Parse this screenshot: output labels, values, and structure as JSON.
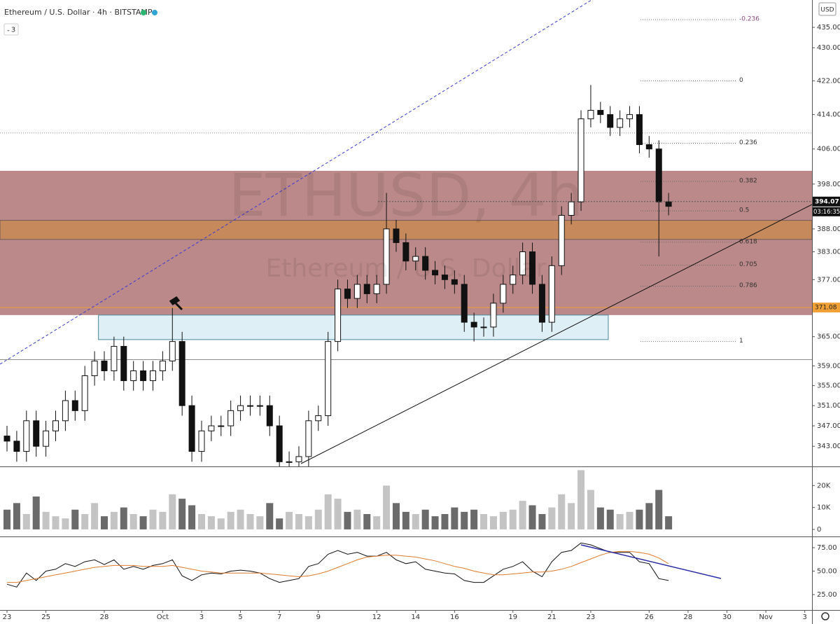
{
  "header": {
    "title": "Ethereum / U.S. Dollar · 4h · BITSTAMP",
    "indicators": 3,
    "currency": "USD",
    "watermark": "ETHUSD, 4h",
    "watermark_sub": "Ethereum / U.S. Dollar"
  },
  "chart_data": [
    {
      "type": "candlestick",
      "x": [
        0,
        0.5,
        1,
        1.5,
        2,
        2.5,
        3,
        3.5,
        4,
        4.5,
        5,
        5.5,
        6,
        6.5,
        7,
        7.5,
        8,
        8.5,
        9,
        9.5,
        10,
        10.5,
        11,
        11.5,
        12,
        12.5,
        13,
        13.5,
        14,
        14.5,
        15,
        15.5,
        16,
        16.5,
        17,
        17.5,
        18,
        18.5,
        19,
        19.5,
        20,
        20.5,
        21,
        21.5,
        22,
        22.5,
        23,
        23.5,
        24,
        24.5,
        25,
        25.5,
        26,
        26.5,
        27,
        27.5,
        28,
        28.5,
        29,
        29.5,
        30,
        30.5,
        31,
        31.5,
        32,
        32.5,
        33,
        33.5,
        34
      ],
      "open": [
        345,
        344,
        342,
        348,
        343,
        346,
        348,
        352,
        350,
        357,
        360,
        358,
        363,
        356,
        358,
        356,
        358,
        360,
        364,
        351,
        342,
        346,
        347,
        347,
        350,
        351,
        351,
        351,
        347,
        340,
        340,
        341,
        348,
        349,
        364,
        375,
        373,
        376,
        374,
        376,
        388,
        385,
        381,
        382,
        379,
        378,
        377,
        376,
        368,
        367,
        367,
        372,
        376,
        378,
        383,
        376,
        368,
        380,
        391,
        394,
        413,
        415,
        414,
        411,
        413,
        414,
        407,
        406,
        394
      ],
      "high": [
        347,
        346,
        350,
        350,
        348,
        350,
        354,
        354,
        359,
        362,
        362,
        365,
        365,
        360,
        360,
        360,
        362,
        371,
        366,
        353,
        348,
        349,
        349,
        352,
        353,
        353,
        353,
        353,
        349,
        342,
        343,
        350,
        351,
        366,
        377,
        377,
        378,
        378,
        378,
        396,
        390,
        387,
        384,
        384,
        381,
        380,
        379,
        378,
        370,
        369,
        374,
        378,
        380,
        385,
        385,
        378,
        382,
        393,
        396,
        415,
        421,
        417,
        416,
        415,
        416,
        416,
        409,
        408,
        396
      ],
      "low": [
        342,
        340,
        340,
        341,
        341,
        344,
        346,
        348,
        348,
        355,
        356,
        356,
        354,
        354,
        354,
        354,
        356,
        358,
        349,
        340,
        340,
        344,
        345,
        345,
        348,
        349,
        349,
        345,
        338,
        338,
        338,
        339,
        346,
        347,
        362,
        371,
        371,
        372,
        372,
        374,
        383,
        379,
        379,
        377,
        376,
        375,
        374,
        366,
        364,
        365,
        365,
        370,
        374,
        376,
        374,
        366,
        366,
        378,
        389,
        392,
        411,
        412,
        409,
        409,
        411,
        405,
        404,
        382,
        391
      ],
      "close": [
        344,
        342,
        348,
        343,
        346,
        348,
        352,
        350,
        357,
        360,
        358,
        363,
        356,
        358,
        356,
        358,
        360,
        364,
        351,
        342,
        346,
        347,
        347,
        350,
        351,
        351,
        351,
        347,
        340,
        340,
        341,
        348,
        349,
        364,
        375,
        373,
        376,
        374,
        376,
        388,
        385,
        381,
        382,
        379,
        378,
        377,
        376,
        368,
        367,
        367,
        372,
        376,
        378,
        383,
        376,
        368,
        380,
        391,
        394,
        413,
        415,
        414,
        411,
        413,
        414,
        407,
        406,
        394,
        393
      ],
      "xlim": [
        -0.36,
        41.37
      ],
      "ylim": [
        339.1,
        441.8
      ],
      "log_scale": true,
      "yticks": [
        {
          "value": 343,
          "label": "343.00"
        },
        {
          "value": 347,
          "label": "347.00"
        },
        {
          "value": 351,
          "label": "351.00"
        },
        {
          "value": 355,
          "label": "355.00"
        },
        {
          "value": 359,
          "label": "359.00"
        },
        {
          "value": 365,
          "label": "365.00"
        },
        {
          "value": 377,
          "label": "377.00"
        },
        {
          "value": 383,
          "label": "383.00"
        },
        {
          "value": 388,
          "label": "388.00"
        },
        {
          "value": 398,
          "label": "398.00"
        },
        {
          "value": 406,
          "label": "406.00"
        },
        {
          "value": 414,
          "label": "414.00"
        },
        {
          "value": 422,
          "label": "422.00"
        },
        {
          "value": 430,
          "label": "430.00"
        },
        {
          "value": 435,
          "label": "435.00"
        }
      ],
      "up_color": "#ffffff",
      "down_color": "#111111",
      "zones": [
        {
          "from": 369.5,
          "to": 401,
          "color": "#8e3b3b"
        },
        {
          "from": 385.7,
          "to": 389.9,
          "color": "#d08a36"
        }
      ],
      "box": {
        "x": [
          4.7,
          30.9
        ],
        "y": [
          364.4,
          369.5
        ],
        "color": "#d3e9f1"
      },
      "levels": [
        409.7,
        360.3
      ],
      "fib": {
        "levels": [
          -0.236,
          0,
          0.236,
          0.382,
          0.5,
          0.618,
          0.705,
          0.786,
          1
        ],
        "prices": [
          436.9,
          422.0,
          407.3,
          398.6,
          392.0,
          385.1,
          380.1,
          375.6,
          364.0
        ]
      },
      "last_price": 394.07,
      "countdown": "03:16:35",
      "marked_price": 371.08,
      "marked_color": "#f0a035"
    },
    {
      "type": "bar",
      "values": [
        9000,
        12000,
        7000,
        15000,
        8000,
        6000,
        5000,
        9000,
        7000,
        12000,
        6000,
        8000,
        10000,
        7000,
        6000,
        9000,
        8000,
        16000,
        14000,
        11000,
        7000,
        6000,
        5000,
        8000,
        9000,
        7000,
        6000,
        12000,
        5000,
        8000,
        7000,
        6000,
        9000,
        16000,
        14000,
        8000,
        9000,
        7000,
        6000,
        20000,
        12000,
        8000,
        7000,
        9000,
        6000,
        7000,
        10000,
        8000,
        9000,
        7000,
        6000,
        8000,
        9000,
        13000,
        11000,
        7000,
        10000,
        16000,
        12000,
        27000,
        18000,
        10000,
        9000,
        7000,
        8000,
        9000,
        12000,
        18000,
        6000
      ],
      "ylim": [
        -2900,
        28400
      ],
      "yticks": [
        0,
        {
          "value": 10000,
          "label": "10K"
        },
        {
          "value": 20000,
          "label": "20K"
        }
      ],
      "up_color": "#c4c4c4",
      "down_color": "#6b6b6b"
    },
    {
      "type": "line",
      "series": [
        {
          "color": "#111111",
          "values": [
            36,
            33,
            48,
            40,
            50,
            52,
            58,
            55,
            60,
            62,
            57,
            62,
            52,
            55,
            52,
            56,
            58,
            62,
            45,
            40,
            46,
            48,
            47,
            50,
            51,
            50,
            48,
            42,
            38,
            40,
            42,
            55,
            58,
            68,
            72,
            68,
            70,
            66,
            66,
            70,
            62,
            58,
            60,
            52,
            50,
            48,
            47,
            40,
            38,
            38,
            45,
            52,
            55,
            60,
            50,
            44,
            60,
            70,
            72,
            80,
            78,
            74,
            70,
            70,
            70,
            60,
            58,
            42,
            40
          ]
        },
        {
          "color": "#e07b2c",
          "values": [
            38,
            38,
            40,
            42,
            44,
            46,
            48,
            50,
            52,
            54,
            55,
            56,
            56,
            56,
            55,
            55,
            55,
            56,
            54,
            52,
            50,
            49,
            48,
            48,
            48,
            48,
            48,
            47,
            46,
            45,
            44,
            45,
            47,
            50,
            54,
            58,
            62,
            65,
            66,
            67,
            67,
            66,
            65,
            63,
            61,
            58,
            55,
            53,
            50,
            48,
            46,
            46,
            47,
            48,
            49,
            49,
            50,
            52,
            55,
            59,
            63,
            67,
            70,
            71,
            71,
            70,
            68,
            64,
            58
          ]
        }
      ],
      "ylim": [
        9.3,
        86.2
      ],
      "yticks": [
        {
          "value": 75,
          "label": "75.00"
        },
        {
          "value": 50,
          "label": "50.00"
        },
        {
          "value": 25,
          "label": "25.00"
        }
      ],
      "xlim": [
        -0.36,
        41.37
      ],
      "xticks": [
        {
          "value": 0,
          "label": "23"
        },
        {
          "value": 2,
          "label": "25"
        },
        {
          "value": 5,
          "label": "28"
        },
        {
          "value": 8,
          "label": "Oct"
        },
        {
          "value": 10,
          "label": "3"
        },
        {
          "value": 12,
          "label": "5"
        },
        {
          "value": 14,
          "label": "7"
        },
        {
          "value": 16,
          "label": "9"
        },
        {
          "value": 19,
          "label": "12"
        },
        {
          "value": 21,
          "label": "14"
        },
        {
          "value": 23,
          "label": "16"
        },
        {
          "value": 26,
          "label": "19"
        },
        {
          "value": 28,
          "label": "21"
        },
        {
          "value": 30,
          "label": "23"
        },
        {
          "value": 33,
          "label": "26"
        },
        {
          "value": 35,
          "label": "28"
        },
        {
          "value": 37,
          "label": "30"
        },
        {
          "value": 39,
          "label": "Nov"
        },
        {
          "value": 41,
          "label": "3"
        }
      ]
    }
  ]
}
